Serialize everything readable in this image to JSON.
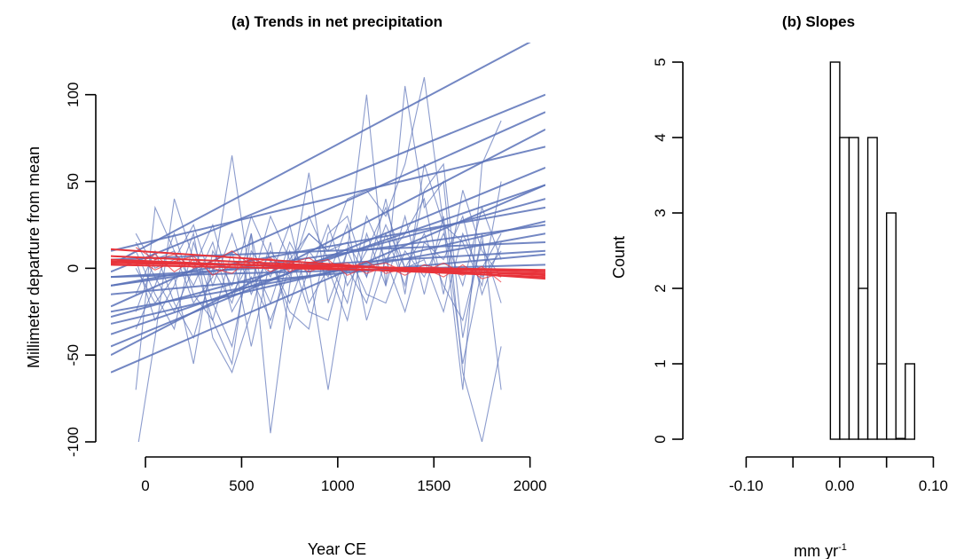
{
  "chart_data": [
    {
      "type": "line",
      "title": "(a) Trends in net precipitation",
      "xlabel": "Year CE",
      "ylabel": "Millimeter departure from mean",
      "xlim": [
        -180,
        2080
      ],
      "ylim": [
        -100,
        130
      ],
      "x_ticks": [
        0,
        500,
        1000,
        1500,
        2000
      ],
      "y_ticks": [
        -100,
        -50,
        0,
        50,
        100
      ],
      "colors": {
        "blue_series": "#5b72b8",
        "red_series": "#e8333a"
      },
      "raw_series_x": [
        -50,
        50,
        150,
        250,
        350,
        450,
        550,
        650,
        750,
        850,
        950,
        1050,
        1150,
        1250,
        1350,
        1450,
        1550,
        1650,
        1750,
        1850
      ],
      "blue_raw_series": [
        [
          -70,
          35,
          10,
          -20,
          -5,
          65,
          -10,
          30,
          5,
          20,
          10,
          40,
          45,
          30,
          60,
          110,
          25,
          -70,
          60,
          85
        ],
        [
          -110,
          -40,
          40,
          5,
          -30,
          -55,
          20,
          -95,
          -10,
          55,
          -20,
          10,
          100,
          -10,
          105,
          35,
          50,
          -60,
          -100,
          -45
        ],
        [
          0,
          -20,
          -5,
          -55,
          10,
          -10,
          30,
          5,
          -25,
          -35,
          20,
          30,
          -5,
          40,
          -15,
          60,
          25,
          15,
          -10,
          50
        ],
        [
          10,
          -15,
          -35,
          15,
          -20,
          -45,
          10,
          -5,
          25,
          -20,
          0,
          -30,
          20,
          -10,
          30,
          -15,
          30,
          -55,
          0,
          20
        ],
        [
          -25,
          5,
          10,
          -10,
          15,
          -25,
          -5,
          -30,
          0,
          20,
          10,
          15,
          -5,
          25,
          0,
          20,
          -10,
          -30,
          15,
          -20
        ],
        [
          5,
          -30,
          -10,
          20,
          -40,
          -60,
          -25,
          15,
          -35,
          0,
          -70,
          0,
          -20,
          20,
          -10,
          45,
          60,
          -40,
          20,
          -70
        ],
        [
          15,
          -5,
          -25,
          0,
          25,
          -15,
          5,
          -20,
          15,
          -5,
          25,
          -10,
          10,
          35,
          0,
          5,
          -25,
          20,
          -5,
          10
        ],
        [
          -35,
          -10,
          20,
          -15,
          -30,
          10,
          -45,
          5,
          -20,
          10,
          -5,
          25,
          -30,
          5,
          20,
          40,
          -15,
          45,
          10,
          -5
        ],
        [
          -15,
          10,
          -20,
          -40,
          0,
          -20,
          20,
          -35,
          10,
          -25,
          -30,
          10,
          -15,
          -20,
          10,
          -5,
          20,
          -10,
          35,
          5
        ],
        [
          20,
          0,
          5,
          25,
          -10,
          20,
          -15,
          10,
          -5,
          30,
          5,
          -20,
          30,
          5,
          -25,
          15,
          5,
          30,
          -15,
          15
        ]
      ],
      "red_raw_series": [
        [
          12,
          5,
          8,
          0,
          4,
          10,
          2,
          6,
          -2,
          3,
          5,
          -4,
          1,
          3,
          -2,
          0,
          -5,
          2,
          -6,
          -3
        ],
        [
          2,
          8,
          -2,
          5,
          0,
          -3,
          6,
          1,
          4,
          -2,
          2,
          3,
          -3,
          1,
          -4,
          2,
          -1,
          -4,
          1,
          -8
        ],
        [
          6,
          -1,
          4,
          7,
          -4,
          2,
          5,
          -2,
          3,
          6,
          -1,
          0,
          4,
          -3,
          0,
          -2,
          3,
          -3,
          -2,
          -5
        ]
      ],
      "blue_trend_lines": [
        [
          2,
          135
        ],
        [
          -2,
          100
        ],
        [
          -22,
          90
        ],
        [
          -38,
          48
        ],
        [
          -50,
          80
        ],
        [
          -60,
          48
        ],
        [
          -28,
          40
        ],
        [
          -10,
          35
        ],
        [
          -25,
          20
        ],
        [
          -5,
          10
        ],
        [
          -10,
          25
        ],
        [
          -15,
          8
        ],
        [
          5,
          15
        ],
        [
          10,
          70
        ],
        [
          -45,
          58
        ],
        [
          -32,
          27
        ],
        [
          -5,
          2
        ]
      ],
      "red_trend_lines": [
        [
          11,
          -6
        ],
        [
          7,
          -4
        ],
        [
          4,
          -2
        ],
        [
          2,
          -3
        ],
        [
          3,
          -1
        ],
        [
          5,
          -5
        ]
      ]
    },
    {
      "type": "bar",
      "title": "(b) Slopes",
      "xlabel": "mm yr",
      "xlabel_sup": "-1",
      "ylabel": "Count",
      "xlim": [
        -0.125,
        0.11
      ],
      "ylim": [
        0,
        5
      ],
      "x_ticks": [
        -0.1,
        -0.05,
        0.0,
        0.05,
        0.1
      ],
      "x_tick_labels": [
        "-0.10",
        "",
        "0.00",
        "",
        "0.10"
      ],
      "y_ticks": [
        0,
        1,
        2,
        3,
        4,
        5
      ],
      "bin_edges": [
        -0.01,
        0.0,
        0.01,
        0.02,
        0.03,
        0.04,
        0.05,
        0.06,
        0.07,
        0.08
      ],
      "counts": [
        5,
        4,
        4,
        2,
        4,
        1,
        3,
        0,
        1
      ]
    }
  ]
}
